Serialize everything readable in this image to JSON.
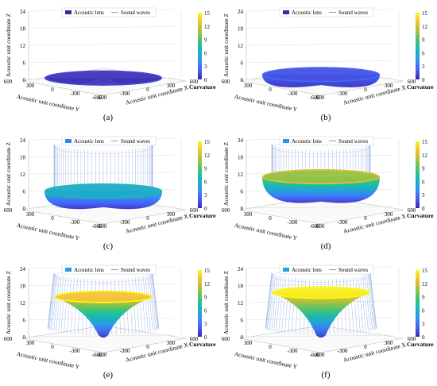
{
  "figure": {
    "legend": {
      "lens_label": "Acoustic lens",
      "waves_label": "Sound waves"
    },
    "axes": {
      "zlabel": "Acoustic unit coordinate Z",
      "xlabel": "Acoustic unit coordinate X",
      "ylabel": "Acoustic unit coordinate Y",
      "colorbar_label": "Curvature"
    },
    "colorbar_ticks": [
      "0",
      "3",
      "6",
      "9",
      "12",
      "15"
    ],
    "colors": {
      "colormap": [
        "#3e26a8",
        "#4760f7",
        "#2c97ef",
        "#14b6b8",
        "#39c57c",
        "#a8c132",
        "#f4bb3c",
        "#f9fb15"
      ],
      "waves": "#5b86d6",
      "axis_grid": "#dddddd",
      "box": "#bbbbbb"
    }
  },
  "chart_data": [
    {
      "label": "(a)",
      "type": "surface",
      "zlim": [
        0,
        24
      ],
      "zticks": [
        0,
        6,
        12,
        18,
        24
      ],
      "xticks": [
        -600,
        -300,
        0,
        300,
        600
      ],
      "yticks": [
        600,
        300,
        0,
        -300,
        -600
      ],
      "clim": [
        0,
        15
      ],
      "lens_depth": 0,
      "lens_rim_height": 0.5,
      "lens_radius": 600,
      "lens_curvature": 0,
      "waves_visible": false
    },
    {
      "label": "(b)",
      "type": "surface",
      "zlim": [
        0,
        24
      ],
      "zticks": [
        0,
        6,
        12,
        18,
        24
      ],
      "xticks": [
        -600,
        -300,
        0,
        300,
        600
      ],
      "yticks": [
        600,
        300,
        0,
        -300,
        -600
      ],
      "clim": [
        0,
        15
      ],
      "lens_depth": 0.7,
      "lens_rim_height": 1.7,
      "lens_radius": 600,
      "lens_curvature": 1,
      "waves_visible": false
    },
    {
      "label": "(c)",
      "type": "surface",
      "zlim": [
        0,
        24
      ],
      "zticks": [
        0,
        6,
        12,
        18,
        24
      ],
      "xticks": [
        -600,
        -300,
        0,
        300,
        600
      ],
      "yticks": [
        600,
        300,
        0,
        -300,
        -600
      ],
      "clim": [
        0,
        15
      ],
      "lens_depth": 3,
      "lens_rim_height": 6,
      "lens_radius": 600,
      "lens_curvature": 5,
      "waves_visible": true
    },
    {
      "label": "(d)",
      "type": "surface",
      "zlim": [
        0,
        24
      ],
      "zticks": [
        0,
        6,
        12,
        18,
        24
      ],
      "xticks": [
        -600,
        -300,
        0,
        300,
        600
      ],
      "yticks": [
        600,
        300,
        0,
        -300,
        -600
      ],
      "clim": [
        0,
        15
      ],
      "lens_depth": 5,
      "lens_rim_height": 11,
      "lens_radius": 600,
      "lens_curvature": 8,
      "waves_visible": true
    },
    {
      "label": "(e)",
      "type": "surface",
      "zlim": [
        0,
        24
      ],
      "zticks": [
        0,
        6,
        12,
        18,
        24
      ],
      "xticks": [
        -600,
        -300,
        0,
        300,
        600
      ],
      "yticks": [
        600,
        300,
        0,
        -300,
        -600
      ],
      "clim": [
        0,
        15
      ],
      "lens_depth": 0,
      "lens_rim_height": 14,
      "lens_radius": 500,
      "lens_curvature": 13,
      "waves_visible": true
    },
    {
      "label": "(f)",
      "type": "surface",
      "zlim": [
        0,
        24
      ],
      "zticks": [
        0,
        6,
        12,
        18,
        24
      ],
      "xticks": [
        -600,
        -300,
        0,
        300,
        600
      ],
      "yticks": [
        600,
        300,
        0,
        -300,
        -600
      ],
      "clim": [
        0,
        15
      ],
      "lens_depth": 0,
      "lens_rim_height": 15.5,
      "lens_radius": 500,
      "lens_curvature": 15,
      "waves_visible": true
    }
  ]
}
